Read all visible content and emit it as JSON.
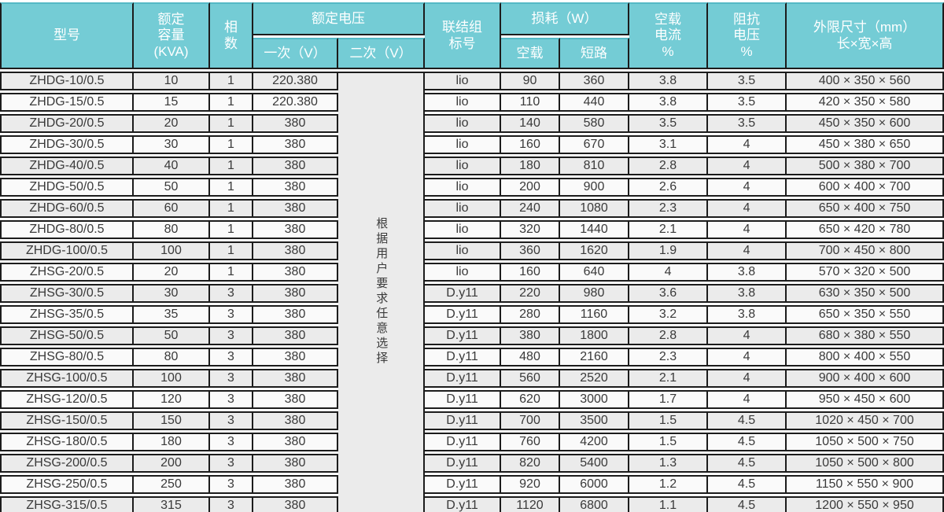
{
  "colors": {
    "header_teal": "#74ccd5",
    "row_odd_bg": "#ebebeb",
    "row_even_bg": "#fafafa",
    "merged_cell_bg": "#f3f3f3",
    "border_black": "#1c1c1c",
    "header_text": "#ffffff",
    "body_text": "#3a3a3a"
  },
  "header": {
    "model": "型号",
    "capacity": "额定\n容量\n(KVA)",
    "phases": "相\n数",
    "voltage_group": "额定电压",
    "primary": "一次（V）",
    "secondary": "二次（V）",
    "connection": "联结组\n标号",
    "loss_group": "损耗（W）",
    "no_load": "空载",
    "short_circuit": "短路",
    "no_load_current": "空载\n电流\n%",
    "impedance_voltage": "阻抗\n电压\n%",
    "dimensions": "外限尺寸（mm）\n长×宽×高"
  },
  "secondary_note": "根据用户要求任意选择",
  "rows": [
    {
      "model": "ZHDG-10/0.5",
      "capacity": "10",
      "phases": "1",
      "primary": "220.380",
      "connection": "lio",
      "no_load": "90",
      "short_circuit": "360",
      "no_load_current": "3.8",
      "impedance": "3.5",
      "dims": "400 × 350 × 560"
    },
    {
      "model": "ZHDG-15/0.5",
      "capacity": "15",
      "phases": "1",
      "primary": "220.380",
      "connection": "lio",
      "no_load": "110",
      "short_circuit": "440",
      "no_load_current": "3.8",
      "impedance": "3.5",
      "dims": "420 × 350 × 580"
    },
    {
      "model": "ZHDG-20/0.5",
      "capacity": "20",
      "phases": "1",
      "primary": "380",
      "connection": "lio",
      "no_load": "140",
      "short_circuit": "580",
      "no_load_current": "3.5",
      "impedance": "3.5",
      "dims": "450 × 350 × 600"
    },
    {
      "model": "ZHDG-30/0.5",
      "capacity": "30",
      "phases": "1",
      "primary": "380",
      "connection": "lio",
      "no_load": "160",
      "short_circuit": "670",
      "no_load_current": "3.1",
      "impedance": "4",
      "dims": "450 × 380 × 650"
    },
    {
      "model": "ZHDG-40/0.5",
      "capacity": "40",
      "phases": "1",
      "primary": "380",
      "connection": "lio",
      "no_load": "180",
      "short_circuit": "810",
      "no_load_current": "2.8",
      "impedance": "4",
      "dims": "500 × 380 × 700"
    },
    {
      "model": "ZHDG-50/0.5",
      "capacity": "50",
      "phases": "1",
      "primary": "380",
      "connection": "lio",
      "no_load": "200",
      "short_circuit": "900",
      "no_load_current": "2.6",
      "impedance": "4",
      "dims": "600 × 400 × 700"
    },
    {
      "model": "ZHDG-60/0.5",
      "capacity": "60",
      "phases": "1",
      "primary": "380",
      "connection": "lio",
      "no_load": "240",
      "short_circuit": "1080",
      "no_load_current": "2.3",
      "impedance": "4",
      "dims": "650 × 400 × 750"
    },
    {
      "model": "ZHDG-80/0.5",
      "capacity": "80",
      "phases": "1",
      "primary": "380",
      "connection": "lio",
      "no_load": "320",
      "short_circuit": "1440",
      "no_load_current": "2.1",
      "impedance": "4",
      "dims": "650 × 420 × 780"
    },
    {
      "model": "ZHDG-100/0.5",
      "capacity": "100",
      "phases": "1",
      "primary": "380",
      "connection": "lio",
      "no_load": "360",
      "short_circuit": "1620",
      "no_load_current": "1.9",
      "impedance": "4",
      "dims": "700 × 450 × 800"
    },
    {
      "model": "ZHSG-20/0.5",
      "capacity": "20",
      "phases": "1",
      "primary": "380",
      "connection": "lio",
      "no_load": "160",
      "short_circuit": "640",
      "no_load_current": "4",
      "impedance": "3.8",
      "dims": "570 × 320 × 500"
    },
    {
      "model": "ZHSG-30/0.5",
      "capacity": "30",
      "phases": "3",
      "primary": "380",
      "connection": "D.y11",
      "no_load": "220",
      "short_circuit": "980",
      "no_load_current": "3.6",
      "impedance": "3.8",
      "dims": "630 × 350 × 500"
    },
    {
      "model": "ZHSG-35/0.5",
      "capacity": "35",
      "phases": "3",
      "primary": "380",
      "connection": "D.y11",
      "no_load": "280",
      "short_circuit": "1160",
      "no_load_current": "3.2",
      "impedance": "3.8",
      "dims": "650 × 350 × 550"
    },
    {
      "model": "ZHSG-50/0.5",
      "capacity": "50",
      "phases": "3",
      "primary": "380",
      "connection": "D.y11",
      "no_load": "380",
      "short_circuit": "1800",
      "no_load_current": "2.8",
      "impedance": "4",
      "dims": "680 × 380 × 550"
    },
    {
      "model": "ZHSG-80/0.5",
      "capacity": "80",
      "phases": "3",
      "primary": "380",
      "connection": "D.y11",
      "no_load": "480",
      "short_circuit": "2160",
      "no_load_current": "2.3",
      "impedance": "4",
      "dims": "800 × 400 × 550"
    },
    {
      "model": "ZHSG-100/0.5",
      "capacity": "100",
      "phases": "3",
      "primary": "380",
      "connection": "D.y11",
      "no_load": "560",
      "short_circuit": "2520",
      "no_load_current": "2.1",
      "impedance": "4",
      "dims": "900 × 400 × 600"
    },
    {
      "model": "ZHSG-120/0.5",
      "capacity": "120",
      "phases": "3",
      "primary": "380",
      "connection": "D.y11",
      "no_load": "620",
      "short_circuit": "3000",
      "no_load_current": "1.7",
      "impedance": "4",
      "dims": "950 × 450 × 600"
    },
    {
      "model": "ZHSG-150/0.5",
      "capacity": "150",
      "phases": "3",
      "primary": "380",
      "connection": "D.y11",
      "no_load": "700",
      "short_circuit": "3500",
      "no_load_current": "1.5",
      "impedance": "4.5",
      "dims": "1020 × 450 × 700"
    },
    {
      "model": "ZHSG-180/0.5",
      "capacity": "180",
      "phases": "3",
      "primary": "380",
      "connection": "D.y11",
      "no_load": "760",
      "short_circuit": "4200",
      "no_load_current": "1.5",
      "impedance": "4.5",
      "dims": "1050 × 500 × 750"
    },
    {
      "model": "ZHSG-200/0.5",
      "capacity": "200",
      "phases": "3",
      "primary": "380",
      "connection": "D.y11",
      "no_load": "820",
      "short_circuit": "5400",
      "no_load_current": "1.3",
      "impedance": "4.5",
      "dims": "1050 × 500 × 800"
    },
    {
      "model": "ZHSG-250/0.5",
      "capacity": "250",
      "phases": "3",
      "primary": "380",
      "connection": "D.y11",
      "no_load": "920",
      "short_circuit": "6000",
      "no_load_current": "1.2",
      "impedance": "4.5",
      "dims": "1150 × 550 × 900"
    },
    {
      "model": "ZHSG-315/0.5",
      "capacity": "315",
      "phases": "3",
      "primary": "380",
      "connection": "D.y11",
      "no_load": "1120",
      "short_circuit": "6800",
      "no_load_current": "1.1",
      "impedance": "4.5",
      "dims": "1200 × 550 × 950"
    }
  ]
}
